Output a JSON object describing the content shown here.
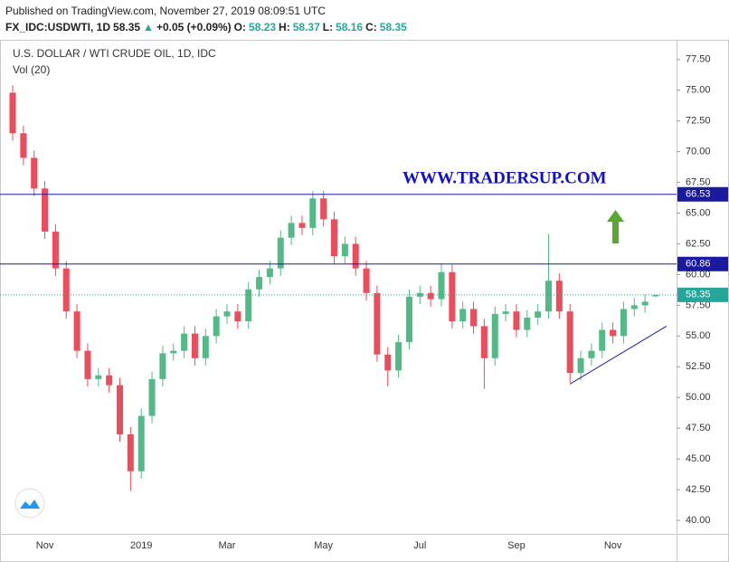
{
  "header": {
    "published": "Published on TradingView.com, November 27, 2019 08:09:51 UTC",
    "symbol": "FX_IDC:USDWTI, 1D",
    "last": 58.35,
    "arrow": "▲",
    "change": "+0.05 (+0.09%)",
    "o_label": "O:",
    "o": 58.23,
    "h_label": "H:",
    "h": 58.37,
    "l_label": "L:",
    "l": 58.16,
    "c_label": "C:",
    "c": 58.35
  },
  "chart_data": {
    "type": "candlestick",
    "title": "U.S. DOLLAR / WTI CRUDE OIL, 1D, IDC",
    "subtitle": "Vol (20)",
    "annotation": "WWW.TRADERSUP.COM",
    "categories": [
      null,
      null,
      null,
      "Nov",
      null,
      null,
      null,
      null,
      null,
      null,
      null,
      null,
      "2019",
      null,
      null,
      null,
      null,
      null,
      null,
      null,
      "Mar",
      null,
      null,
      null,
      null,
      null,
      null,
      null,
      null,
      "May",
      null,
      null,
      null,
      null,
      null,
      null,
      null,
      null,
      "Jul",
      null,
      null,
      null,
      null,
      null,
      null,
      null,
      null,
      "Sep",
      null,
      null,
      null,
      null,
      null,
      null,
      null,
      null,
      "Nov",
      null,
      null,
      null,
      null
    ],
    "open": [
      74.8,
      71.5,
      69.5,
      67,
      63.5,
      60.5,
      57,
      53.8,
      51.5,
      51.8,
      51,
      47,
      44,
      48.5,
      51.5,
      53.6,
      53.8,
      55.2,
      53.2,
      55,
      56.6,
      57,
      56.2,
      58.8,
      59.8,
      60.5,
      63,
      64.2,
      63.8,
      66.2,
      64.5,
      61.5,
      62.5,
      60.5,
      58.5,
      53.5,
      52.2,
      54.5,
      58.2,
      58.5,
      58,
      60.2,
      56.2,
      57.2,
      55.8,
      53.2,
      56.8,
      57,
      55.5,
      56.5,
      57,
      59.5,
      57,
      52,
      53.2,
      53.8,
      55.5,
      55,
      57.2,
      57.5,
      58.23
    ],
    "high": [
      75.4,
      72.1,
      70.1,
      67.6,
      64.1,
      61.1,
      57.6,
      54.4,
      52.4,
      52.4,
      51.6,
      47.6,
      49.1,
      52.1,
      54.2,
      54.4,
      55.8,
      55.8,
      55.6,
      57.2,
      57.6,
      57.6,
      59.4,
      60.4,
      61.1,
      63.6,
      64.8,
      64.8,
      66.8,
      66.8,
      65.1,
      63.1,
      63.1,
      61.1,
      59.1,
      54.1,
      55.1,
      58.8,
      59.1,
      59.1,
      60.9,
      60.8,
      57.8,
      57.8,
      56.4,
      57.4,
      57.6,
      57.6,
      57.1,
      57.6,
      63.3,
      60.1,
      57.6,
      53.8,
      54.4,
      56.1,
      56.1,
      57.8,
      58.1,
      58.4,
      58.37
    ],
    "low": [
      70.9,
      68.9,
      66.4,
      62.9,
      59.9,
      56.4,
      53.2,
      50.9,
      50.9,
      50.4,
      46.4,
      42.4,
      43.4,
      47.9,
      50.9,
      53,
      53.2,
      52.6,
      52.6,
      54.4,
      56,
      55.6,
      55.6,
      58.2,
      59.2,
      59.9,
      62.4,
      63.2,
      63.2,
      63.9,
      60.9,
      60.9,
      59.9,
      57.9,
      52.9,
      50.9,
      51.6,
      53.9,
      57.6,
      57.4,
      57.4,
      55.6,
      55.6,
      55.2,
      50.7,
      52.6,
      56.2,
      54.9,
      54.9,
      55.9,
      56.4,
      56.4,
      51.2,
      51.4,
      52.6,
      53.2,
      54.4,
      54.4,
      56.6,
      56.9,
      58.16
    ],
    "close": [
      71.5,
      69.5,
      67,
      63.5,
      60.5,
      57,
      53.8,
      51.5,
      51.8,
      51,
      47,
      44,
      48.5,
      51.5,
      53.6,
      53.8,
      55.2,
      53.2,
      55,
      56.6,
      57,
      56.2,
      58.8,
      59.8,
      60.5,
      63,
      64.2,
      63.8,
      66.2,
      64.5,
      61.5,
      62.5,
      60.5,
      58.5,
      53.5,
      52.2,
      54.5,
      58.2,
      58.5,
      58,
      60.2,
      56.2,
      57.2,
      55.8,
      53.2,
      56.8,
      57,
      55.5,
      56.5,
      57,
      59.5,
      57,
      52,
      53.2,
      53.8,
      55.5,
      55,
      57.2,
      57.5,
      57.8,
      58.35
    ],
    "up_color": "#53b987",
    "down_color": "#eb4d5c",
    "levels": [
      {
        "value": 66.53,
        "color": "#1a1a9e",
        "style": "solid"
      },
      {
        "value": 60.86,
        "color": "#1a1a9e",
        "style": "solid"
      },
      {
        "value": 58.35,
        "color": "#26a69a",
        "style": "dotted"
      }
    ],
    "trendline": {
      "x": [
        52,
        61
      ],
      "y": [
        51.1,
        55.8
      ],
      "color": "#1a1a9e"
    },
    "ylim": [
      38.9,
      79.1
    ],
    "yticks": [
      {
        "value": 40,
        "label": "40.00"
      },
      {
        "value": 42.5,
        "label": "42.50"
      },
      {
        "value": 45,
        "label": "45.00"
      },
      {
        "value": 47.5,
        "label": "47.50"
      },
      {
        "value": 50,
        "label": "50.00"
      },
      {
        "value": 52.5,
        "label": "52.50"
      },
      {
        "value": 55,
        "label": "55.00"
      },
      {
        "value": 57.5,
        "label": "57.50"
      },
      {
        "value": 60,
        "label": "60.00"
      },
      {
        "value": 62.5,
        "label": "62.50"
      },
      {
        "value": 65,
        "label": "65.00"
      },
      {
        "value": 67.5,
        "label": "67.50"
      },
      {
        "value": 70,
        "label": "70.00"
      },
      {
        "value": 72.5,
        "label": "72.50"
      },
      {
        "value": 75,
        "label": "75.00"
      },
      {
        "value": 77.5,
        "label": "77.50"
      }
    ]
  }
}
